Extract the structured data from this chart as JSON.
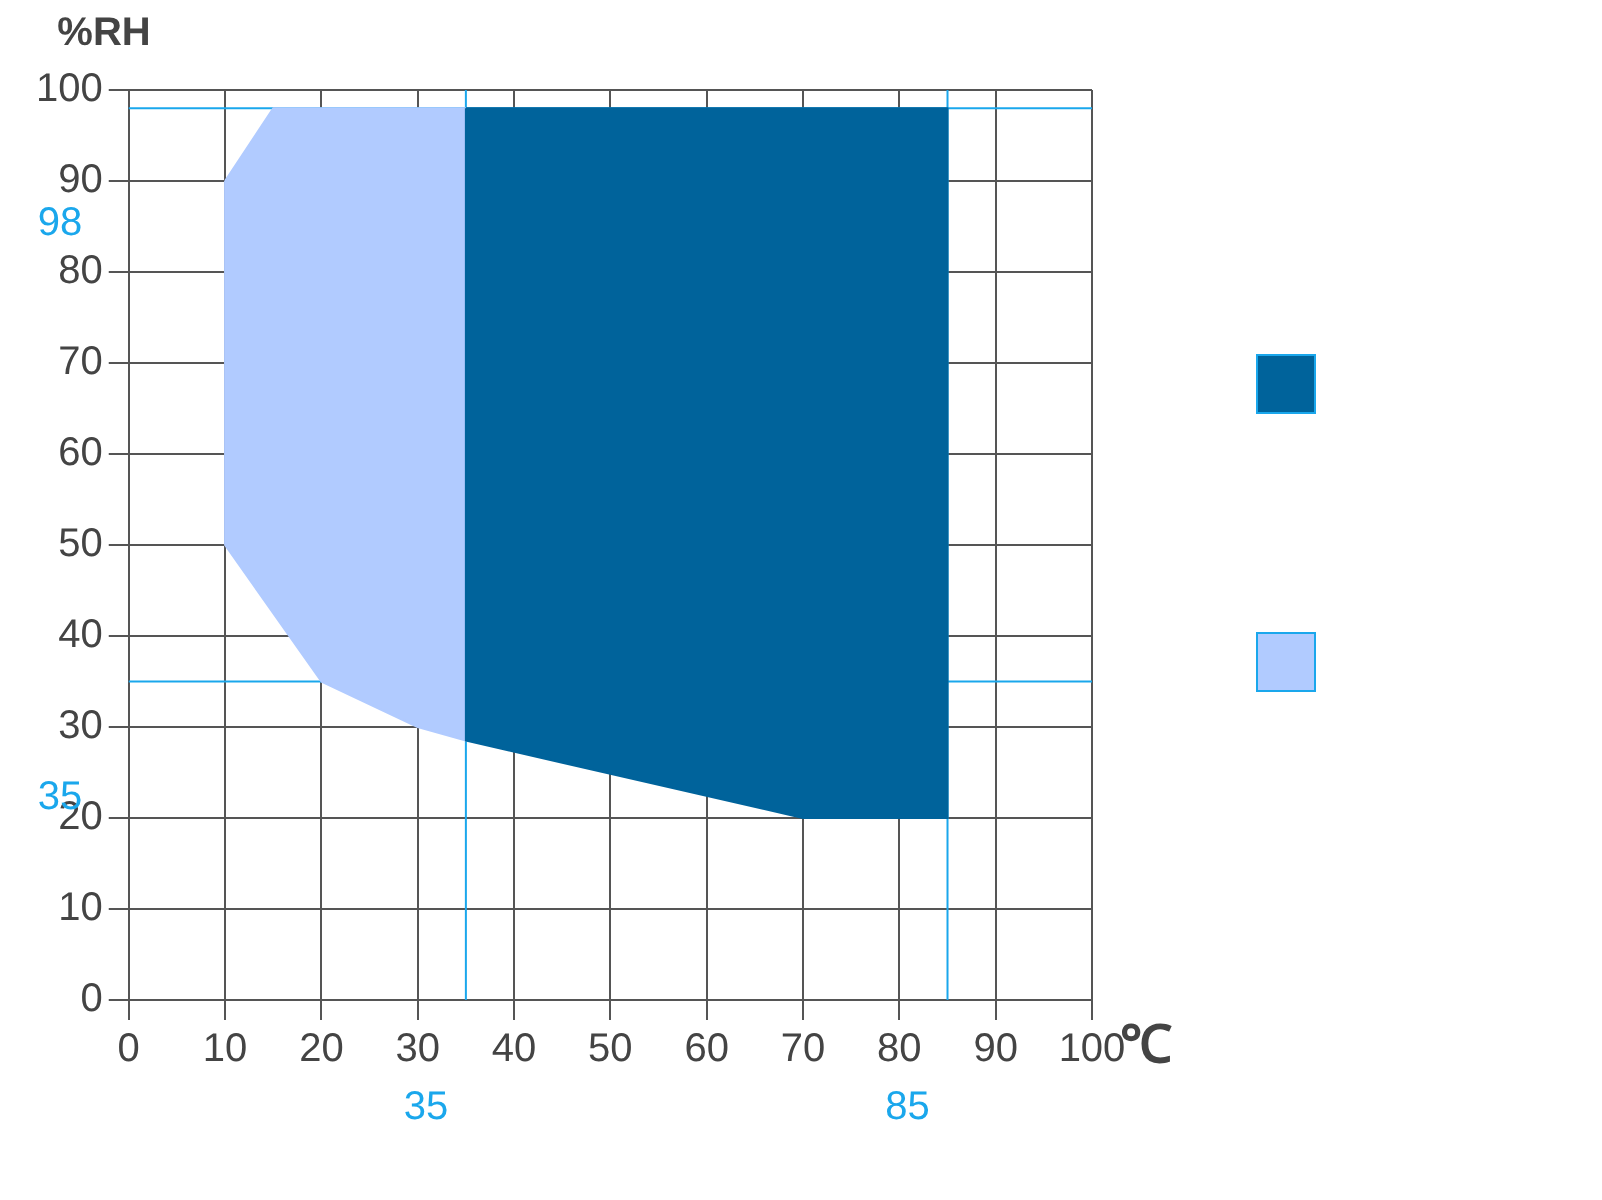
{
  "chart_data": {
    "type": "area",
    "xlabel": "℃",
    "ylabel": "%RH",
    "xlim": [
      0,
      100
    ],
    "xticks": [
      0,
      10,
      20,
      30,
      40,
      50,
      60,
      70,
      80,
      90,
      100
    ],
    "ylim": [
      0,
      100
    ],
    "yticks": [
      0,
      10,
      20,
      30,
      40,
      50,
      60,
      70,
      80,
      90,
      100
    ],
    "grid": true,
    "series": [
      {
        "color": "#00639b",
        "x": [
          35,
          85,
          85,
          70,
          35,
          35
        ],
        "values": [
          98,
          98,
          20,
          20,
          28.5,
          98
        ]
      },
      {
        "color": "#b1cbff",
        "x": [
          10,
          15,
          35,
          35,
          30,
          20,
          10,
          10
        ],
        "values": [
          90,
          98,
          98,
          28.5,
          30,
          35,
          50,
          90
        ]
      }
    ],
    "ref_lines": [
      {
        "axis": "y",
        "value": 98,
        "label": "98",
        "color": "#1aa7ec"
      },
      {
        "axis": "y",
        "value": 35,
        "label": "35",
        "color": "#1aa7ec"
      },
      {
        "axis": "x",
        "value": 35,
        "label": "35",
        "color": "#1aa7ec"
      },
      {
        "axis": "x",
        "value": 85,
        "label": "85",
        "color": "#1aa7ec"
      }
    ]
  }
}
